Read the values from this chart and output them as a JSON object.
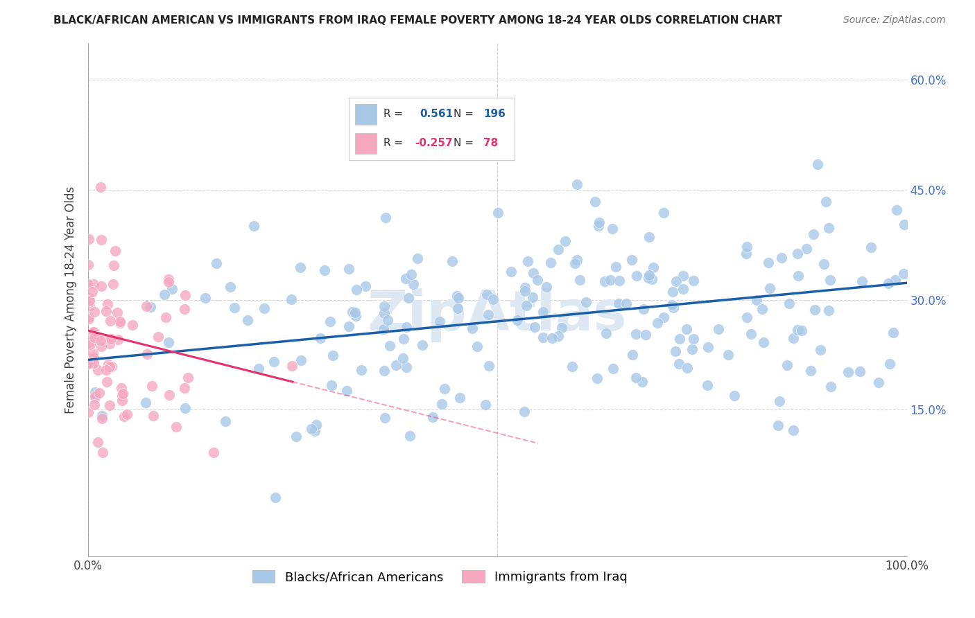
{
  "title": "BLACK/AFRICAN AMERICAN VS IMMIGRANTS FROM IRAQ FEMALE POVERTY AMONG 18-24 YEAR OLDS CORRELATION CHART",
  "source": "Source: ZipAtlas.com",
  "ylabel": "Female Poverty Among 18-24 Year Olds",
  "xlim": [
    0.0,
    1.0
  ],
  "ylim": [
    -0.05,
    0.65
  ],
  "ytick_positions": [
    0.15,
    0.3,
    0.45,
    0.6
  ],
  "ytick_labels": [
    "15.0%",
    "30.0%",
    "45.0%",
    "60.0%"
  ],
  "xtick_positions": [
    0.0,
    0.5,
    1.0
  ],
  "xticklabels": [
    "0.0%",
    "",
    "100.0%"
  ],
  "blue_R": 0.561,
  "blue_N": 196,
  "pink_R": -0.257,
  "pink_N": 78,
  "blue_color": "#a8c8e8",
  "pink_color": "#f5a8c0",
  "blue_line_color": "#1a5fa8",
  "pink_line_color": "#e8306a",
  "blue_scatter_edge": "none",
  "pink_scatter_edge": "none",
  "legend_labels": [
    "Blacks/African Americans",
    "Immigrants from Iraq"
  ],
  "background_color": "#ffffff",
  "grid_color": "#cccccc",
  "seed_blue": 42,
  "seed_pink": 7,
  "blue_intercept": 0.218,
  "blue_slope": 0.105,
  "pink_intercept": 0.258,
  "pink_slope": -0.28,
  "watermark_color": "#dde8f2",
  "title_fontsize": 11,
  "label_fontsize": 12,
  "tick_fontsize": 12,
  "right_tick_color": "#4472c4"
}
